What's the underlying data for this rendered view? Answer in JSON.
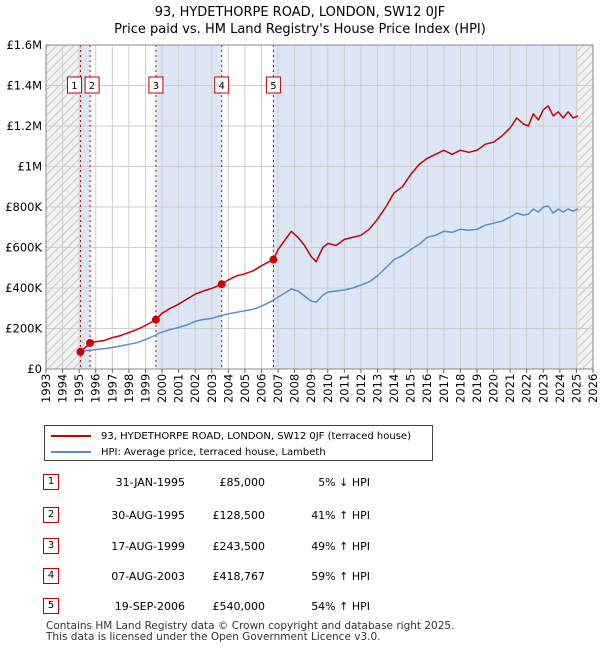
{
  "title_line1": "93, HYDETHORPE ROAD, LONDON, SW12 0JF",
  "title_line2": "Price paid vs. HM Land Registry's House Price Index (HPI)",
  "colors": {
    "property": "#cc0000",
    "hpi": "#5b8ec9",
    "shade": "#dde6f5",
    "grid": "#cfcfcf"
  },
  "legend": {
    "property_label": "93, HYDETHORPE ROAD, LONDON, SW12 0JF (terraced house)",
    "hpi_label": "HPI: Average price, terraced house, Lambeth"
  },
  "transactions": [
    {
      "num": "1",
      "date": "31-JAN-1995",
      "price": "£85,000",
      "hpi": "5% ↓ HPI"
    },
    {
      "num": "2",
      "date": "30-AUG-1995",
      "price": "£128,500",
      "hpi": "41% ↑ HPI"
    },
    {
      "num": "3",
      "date": "17-AUG-1999",
      "price": "£243,500",
      "hpi": "49% ↑ HPI"
    },
    {
      "num": "4",
      "date": "07-AUG-2003",
      "price": "£418,767",
      "hpi": "59% ↑ HPI"
    },
    {
      "num": "5",
      "date": "19-SEP-2006",
      "price": "£540,000",
      "hpi": "54% ↑ HPI"
    }
  ],
  "footer_line1": "Contains HM Land Registry data © Crown copyright and database right 2025.",
  "footer_line2": "This data is licensed under the Open Government Licence v3.0.",
  "chart_data": {
    "type": "line",
    "title": "93, HYDETHORPE ROAD, LONDON, SW12 0JF — Price paid vs. HM Land Registry's House Price Index (HPI)",
    "xlim": [
      1993,
      2026
    ],
    "ylim": [
      0,
      1600000
    ],
    "x_ticks": [
      1993,
      1994,
      1995,
      1996,
      1997,
      1998,
      1999,
      2000,
      2001,
      2002,
      2003,
      2004,
      2005,
      2006,
      2007,
      2008,
      2009,
      2010,
      2011,
      2012,
      2013,
      2014,
      2015,
      2016,
      2017,
      2018,
      2019,
      2020,
      2021,
      2022,
      2023,
      2024,
      2025,
      2026
    ],
    "y_ticks": [
      {
        "value": 0,
        "label": "£0"
      },
      {
        "value": 200000,
        "label": "£200K"
      },
      {
        "value": 400000,
        "label": "£400K"
      },
      {
        "value": 600000,
        "label": "£600K"
      },
      {
        "value": 800000,
        "label": "£800K"
      },
      {
        "value": 1000000,
        "label": "£1M"
      },
      {
        "value": 1200000,
        "label": "£1.2M"
      },
      {
        "value": 1400000,
        "label": "£1.4M"
      },
      {
        "value": 1600000,
        "label": "£1.6M"
      }
    ],
    "hatched_ranges": [
      [
        1993,
        1995.08
      ],
      [
        2025.1,
        2026
      ]
    ],
    "shaded_ranges": [
      [
        1995.08,
        1995.66
      ],
      [
        1999.63,
        2003.6
      ],
      [
        2006.72,
        2025.1
      ]
    ],
    "sales": [
      {
        "label": "1",
        "x": 1995.08,
        "y": 85000
      },
      {
        "label": "2",
        "x": 1995.66,
        "y": 128500
      },
      {
        "label": "3",
        "x": 1999.63,
        "y": 243500
      },
      {
        "label": "4",
        "x": 2003.6,
        "y": 418767
      },
      {
        "label": "5",
        "x": 2006.72,
        "y": 540000
      }
    ],
    "series": [
      {
        "name": "93, HYDETHORPE ROAD, LONDON, SW12 0JF (terraced house)",
        "color": "#cc0000",
        "x": [
          1995.08,
          1995.66,
          1996,
          1996.5,
          1997,
          1997.5,
          1998,
          1998.5,
          1999,
          1999.63,
          2000,
          2000.5,
          2001,
          2001.5,
          2002,
          2002.5,
          2003,
          2003.6,
          2004,
          2004.5,
          2005,
          2005.5,
          2006,
          2006.72,
          2007,
          2007.4,
          2007.8,
          2008.2,
          2008.6,
          2009,
          2009.3,
          2009.7,
          2010,
          2010.5,
          2011,
          2011.5,
          2012,
          2012.5,
          2013,
          2013.5,
          2014,
          2014.5,
          2015,
          2015.5,
          2016,
          2016.5,
          2017,
          2017.5,
          2018,
          2018.5,
          2019,
          2019.5,
          2020,
          2020.5,
          2021,
          2021.4,
          2021.8,
          2022.1,
          2022.4,
          2022.7,
          2023,
          2023.3,
          2023.6,
          2023.9,
          2024.2,
          2024.5,
          2024.8,
          2025.1
        ],
        "y": [
          85000,
          128500,
          135000,
          140000,
          155000,
          165000,
          180000,
          195000,
          215000,
          243500,
          275000,
          300000,
          320000,
          345000,
          370000,
          385000,
          398000,
          418767,
          440000,
          460000,
          470000,
          485000,
          510000,
          540000,
          590000,
          635000,
          680000,
          650000,
          610000,
          555000,
          530000,
          600000,
          620000,
          610000,
          640000,
          650000,
          660000,
          690000,
          740000,
          800000,
          870000,
          900000,
          960000,
          1010000,
          1040000,
          1060000,
          1080000,
          1060000,
          1080000,
          1070000,
          1080000,
          1110000,
          1120000,
          1150000,
          1190000,
          1240000,
          1210000,
          1200000,
          1260000,
          1230000,
          1280000,
          1300000,
          1250000,
          1270000,
          1240000,
          1270000,
          1240000,
          1250000
        ]
      },
      {
        "name": "HPI: Average price, terraced house, Lambeth",
        "color": "#5b8ec9",
        "x": [
          1995.08,
          1995.5,
          1996,
          1996.5,
          1997,
          1997.5,
          1998,
          1998.5,
          1999,
          1999.5,
          2000,
          2000.5,
          2001,
          2001.5,
          2002,
          2002.5,
          2003,
          2003.5,
          2004,
          2004.5,
          2005,
          2005.5,
          2006,
          2006.5,
          2007,
          2007.4,
          2007.8,
          2008.2,
          2008.6,
          2009,
          2009.3,
          2009.7,
          2010,
          2010.5,
          2011,
          2011.5,
          2012,
          2012.5,
          2013,
          2013.5,
          2014,
          2014.5,
          2015,
          2015.5,
          2016,
          2016.5,
          2017,
          2017.5,
          2018,
          2018.5,
          2019,
          2019.5,
          2020,
          2020.5,
          2021,
          2021.4,
          2021.8,
          2022.1,
          2022.4,
          2022.7,
          2023,
          2023.3,
          2023.6,
          2023.9,
          2024.2,
          2024.5,
          2024.8,
          2025.1
        ],
        "y": [
          89000,
          92000,
          96000,
          100000,
          106000,
          114000,
          122000,
          130000,
          145000,
          163000,
          182000,
          195000,
          205000,
          218000,
          235000,
          245000,
          250000,
          262000,
          272000,
          280000,
          288000,
          295000,
          310000,
          330000,
          355000,
          375000,
          395000,
          385000,
          360000,
          335000,
          330000,
          365000,
          380000,
          385000,
          390000,
          400000,
          415000,
          430000,
          460000,
          500000,
          540000,
          560000,
          590000,
          615000,
          650000,
          660000,
          680000,
          675000,
          690000,
          685000,
          690000,
          710000,
          720000,
          730000,
          750000,
          770000,
          760000,
          765000,
          790000,
          775000,
          800000,
          805000,
          770000,
          790000,
          775000,
          790000,
          780000,
          790000
        ]
      }
    ]
  }
}
